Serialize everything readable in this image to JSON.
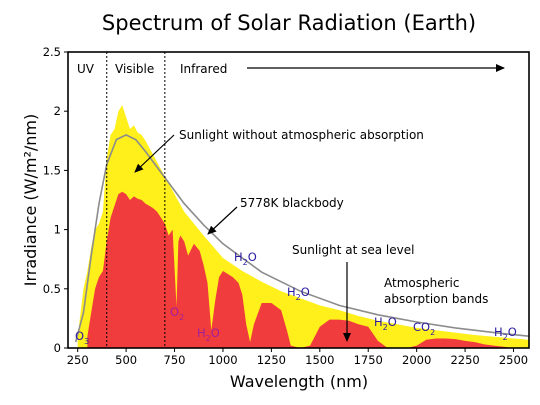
{
  "chart_data": {
    "type": "area",
    "title": "Spectrum of Solar Radiation (Earth)",
    "xlabel": "Wavelength (nm)",
    "ylabel": "Irradiance (W/m²/nm)",
    "xlim": [
      200,
      2580
    ],
    "ylim": [
      0,
      2.5
    ],
    "xticks": [
      250,
      500,
      750,
      1000,
      1250,
      1500,
      1750,
      2000,
      2250,
      2500
    ],
    "yticks": [
      0,
      0.5,
      1,
      1.5,
      2,
      2.5
    ],
    "ytick_labels": [
      "0",
      "0.5",
      "1",
      "1.5",
      "2",
      "2.5"
    ],
    "grid": false,
    "regions": [
      {
        "label": "UV",
        "x_start": 200,
        "x_end": 400
      },
      {
        "label": "Visible",
        "x_start": 400,
        "x_end": 700
      },
      {
        "label": "Infrared",
        "x_start": 700,
        "x_end": 2580
      }
    ],
    "series": [
      {
        "name": "5778K blackbody",
        "color": "#8c8c8c",
        "x": [
          240,
          280,
          320,
          360,
          400,
          450,
          500,
          550,
          600,
          700,
          800,
          900,
          1000,
          1200,
          1400,
          1600,
          1800,
          2000,
          2200,
          2400,
          2580
        ],
        "values": [
          0.05,
          0.3,
          0.78,
          1.22,
          1.55,
          1.76,
          1.8,
          1.76,
          1.66,
          1.44,
          1.22,
          1.04,
          0.88,
          0.64,
          0.48,
          0.36,
          0.28,
          0.22,
          0.17,
          0.13,
          0.1
        ]
      },
      {
        "name": "Sunlight without atmospheric absorption",
        "color": "#ffef1a",
        "x": [
          250,
          280,
          300,
          320,
          340,
          360,
          380,
          400,
          420,
          440,
          460,
          480,
          500,
          520,
          540,
          560,
          580,
          600,
          650,
          700,
          750,
          800,
          900,
          1000,
          1100,
          1200,
          1300,
          1400,
          1500,
          1600,
          1700,
          1800,
          1900,
          2000,
          2100,
          2200,
          2300,
          2400,
          2500,
          2580
        ],
        "values": [
          0.1,
          0.5,
          0.65,
          0.85,
          1.0,
          1.05,
          1.15,
          1.6,
          1.8,
          1.85,
          2.0,
          2.05,
          1.95,
          1.85,
          1.88,
          1.82,
          1.8,
          1.75,
          1.6,
          1.45,
          1.3,
          1.15,
          0.95,
          0.76,
          0.65,
          0.56,
          0.48,
          0.42,
          0.36,
          0.32,
          0.27,
          0.23,
          0.2,
          0.17,
          0.15,
          0.13,
          0.11,
          0.095,
          0.08,
          0.07
        ]
      },
      {
        "name": "Sunlight at sea level",
        "color": "#f03c3c",
        "x": [
          300,
          320,
          340,
          360,
          380,
          400,
          420,
          440,
          460,
          480,
          500,
          520,
          540,
          560,
          580,
          600,
          620,
          640,
          660,
          680,
          700,
          720,
          740,
          760,
          770,
          780,
          800,
          820,
          850,
          880,
          900,
          920,
          940,
          960,
          980,
          1000,
          1050,
          1080,
          1100,
          1120,
          1140,
          1160,
          1200,
          1250,
          1300,
          1330,
          1350,
          1400,
          1450,
          1500,
          1550,
          1600,
          1650,
          1700,
          1750,
          1800,
          1850,
          1900,
          1950,
          2000,
          2050,
          2100,
          2150,
          2200,
          2250,
          2300,
          2350,
          2400,
          2450,
          2500,
          2580
        ],
        "values": [
          0.1,
          0.3,
          0.5,
          0.6,
          0.65,
          0.9,
          1.1,
          1.2,
          1.3,
          1.32,
          1.3,
          1.25,
          1.28,
          1.26,
          1.25,
          1.22,
          1.2,
          1.18,
          1.15,
          1.1,
          1.05,
          0.95,
          1.0,
          0.35,
          0.9,
          0.95,
          0.9,
          0.78,
          0.88,
          0.82,
          0.7,
          0.55,
          0.15,
          0.4,
          0.6,
          0.65,
          0.6,
          0.55,
          0.45,
          0.2,
          0.05,
          0.2,
          0.38,
          0.38,
          0.32,
          0.15,
          0.02,
          0.0,
          0.02,
          0.18,
          0.24,
          0.24,
          0.23,
          0.2,
          0.18,
          0.06,
          0.0,
          0.0,
          0.0,
          0.02,
          0.07,
          0.08,
          0.08,
          0.075,
          0.06,
          0.05,
          0.03,
          0.02,
          0.01,
          0.0,
          0.0
        ]
      }
    ],
    "annotations": [
      {
        "text": "Sunlight without atmospheric absorption",
        "color": "#c6a800"
      },
      {
        "text": "5778K blackbody",
        "color": "#000000"
      },
      {
        "text": "Sunlight at sea level",
        "color": "#7a1a1a"
      },
      {
        "text": "Atmospheric",
        "color": "#2a1aa0"
      },
      {
        "text": "absorption bands",
        "color": "#2a1aa0"
      }
    ],
    "molecules": [
      {
        "main": "O",
        "sub": "3",
        "color": "#2a1aa0"
      },
      {
        "main": "O",
        "sub": "2",
        "color": "#a0209a"
      },
      {
        "main": "H",
        "sub": "2",
        "tail": "O",
        "color": "#a0209a"
      },
      {
        "main": "H",
        "sub": "2",
        "tail": "O",
        "color": "#2a1aa0"
      },
      {
        "main": "H",
        "sub": "2",
        "tail": "O",
        "color": "#2a1aa0"
      },
      {
        "main": "H",
        "sub": "2",
        "tail": "O",
        "color": "#2a1aa0"
      },
      {
        "main": "CO",
        "sub": "2",
        "color": "#2a1aa0"
      },
      {
        "main": "H",
        "sub": "2",
        "tail": "O",
        "color": "#2a1aa0"
      }
    ]
  }
}
